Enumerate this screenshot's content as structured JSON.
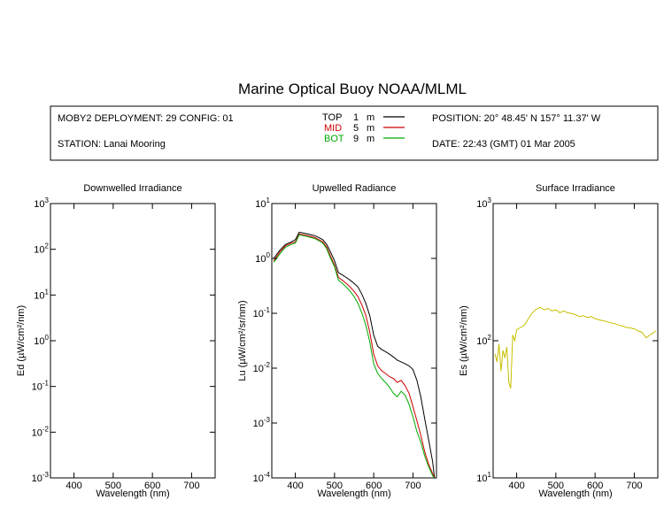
{
  "title": "Marine Optical Buoy NOAA/MLML",
  "header": {
    "deployment": "MOBY2 DEPLOYMENT: 29 CONFIG: 01",
    "station": "STATION: Lanai Mooring",
    "position": "POSITION: 20° 48.45' N   157° 11.37' W",
    "date": "DATE: 22:43 (GMT) 01 Mar 2005",
    "legend": [
      {
        "name": "TOP",
        "depth": "1",
        "unit": "m",
        "color": "#000000"
      },
      {
        "name": "MID",
        "depth": "5",
        "unit": "m",
        "color": "#cc0000"
      },
      {
        "name": "BOT",
        "depth": "9",
        "unit": "m",
        "color": "#00aa00"
      }
    ]
  },
  "chart_data": [
    {
      "type": "line",
      "title": "Downwelled Irradiance",
      "xlabel": "Wavelength (nm)",
      "ylabel": "Ed (µW/cm²/nm)",
      "xlim": [
        340,
        760
      ],
      "ylim": [
        0.001,
        1000
      ],
      "yscale": "log",
      "xticks": [
        400,
        500,
        600,
        700
      ],
      "yticks": [
        0.001,
        0.01,
        0.1,
        1,
        10,
        100,
        1000
      ],
      "ytick_labels": [
        [
          "10",
          "-3"
        ],
        [
          "10",
          "-2"
        ],
        [
          "10",
          "-1"
        ],
        [
          "10",
          "0"
        ],
        [
          "10",
          "1"
        ],
        [
          "10",
          "2"
        ],
        [
          "10",
          "3"
        ]
      ],
      "series": []
    },
    {
      "type": "line",
      "title": "Upwelled Radiance",
      "xlabel": "Wavelength (nm)",
      "ylabel": "Lu (µW/cm²/sr/nm)",
      "xlim": [
        340,
        760
      ],
      "ylim": [
        0.0001,
        10
      ],
      "yscale": "log",
      "xticks": [
        400,
        500,
        600,
        700
      ],
      "yticks": [
        0.0001,
        0.001,
        0.01,
        0.1,
        1,
        10
      ],
      "ytick_labels": [
        [
          "10",
          "-4"
        ],
        [
          "10",
          "-3"
        ],
        [
          "10",
          "-2"
        ],
        [
          "10",
          "-1"
        ],
        [
          "10",
          "0"
        ],
        [
          "10",
          "1"
        ]
      ],
      "series": [
        {
          "name": "TOP",
          "color": "#000000",
          "x": [
            345,
            360,
            375,
            390,
            400,
            410,
            420,
            430,
            440,
            450,
            460,
            470,
            480,
            490,
            500,
            510,
            520,
            530,
            540,
            550,
            560,
            570,
            580,
            590,
            600,
            610,
            620,
            630,
            640,
            650,
            660,
            670,
            680,
            690,
            700,
            710,
            720,
            730,
            740,
            750,
            755
          ],
          "y": [
            1.0,
            1.4,
            1.8,
            2.0,
            2.2,
            3.0,
            2.9,
            2.8,
            2.7,
            2.6,
            2.4,
            2.2,
            1.8,
            1.3,
            0.9,
            0.55,
            0.5,
            0.45,
            0.4,
            0.35,
            0.3,
            0.22,
            0.15,
            0.09,
            0.04,
            0.025,
            0.022,
            0.02,
            0.018,
            0.016,
            0.014,
            0.013,
            0.012,
            0.011,
            0.0095,
            0.006,
            0.003,
            0.0012,
            0.0005,
            0.0002,
            0.0001
          ]
        },
        {
          "name": "MID",
          "color": "#cc0000",
          "x": [
            345,
            360,
            375,
            390,
            400,
            410,
            420,
            430,
            440,
            450,
            460,
            470,
            480,
            490,
            500,
            510,
            520,
            530,
            540,
            550,
            560,
            570,
            580,
            590,
            600,
            610,
            620,
            630,
            640,
            650,
            660,
            670,
            680,
            690,
            700,
            710,
            720,
            730,
            740,
            750,
            755
          ],
          "y": [
            0.9,
            1.3,
            1.7,
            1.9,
            2.0,
            2.8,
            2.7,
            2.6,
            2.5,
            2.4,
            2.2,
            2.0,
            1.6,
            1.1,
            0.75,
            0.45,
            0.4,
            0.35,
            0.3,
            0.25,
            0.2,
            0.14,
            0.09,
            0.045,
            0.018,
            0.011,
            0.009,
            0.008,
            0.007,
            0.0065,
            0.0055,
            0.006,
            0.0048,
            0.0035,
            0.002,
            0.0011,
            0.0006,
            0.0003,
            0.00018,
            0.00012,
            0.0001
          ]
        },
        {
          "name": "BOT",
          "color": "#00aa00",
          "x": [
            345,
            360,
            375,
            390,
            400,
            410,
            420,
            430,
            440,
            450,
            460,
            470,
            480,
            490,
            500,
            510,
            520,
            530,
            540,
            550,
            560,
            570,
            580,
            590,
            600,
            610,
            620,
            630,
            640,
            650,
            660,
            670,
            680,
            690,
            700,
            710,
            720,
            730,
            740,
            750,
            755
          ],
          "y": [
            0.85,
            1.2,
            1.6,
            1.8,
            1.9,
            2.7,
            2.6,
            2.5,
            2.4,
            2.3,
            2.1,
            1.9,
            1.5,
            1.0,
            0.7,
            0.4,
            0.35,
            0.3,
            0.25,
            0.2,
            0.15,
            0.1,
            0.06,
            0.03,
            0.012,
            0.008,
            0.0065,
            0.0055,
            0.0045,
            0.0035,
            0.003,
            0.0038,
            0.0032,
            0.0022,
            0.0013,
            0.0007,
            0.00045,
            0.00025,
            0.00016,
            0.00011,
            0.0001
          ]
        }
      ]
    },
    {
      "type": "line",
      "title": "Surface Irradiance",
      "xlabel": "Wavelength (nm)",
      "ylabel": "Es (µW/cm²/nm)",
      "xlim": [
        340,
        760
      ],
      "ylim": [
        10,
        1000
      ],
      "yscale": "log",
      "xticks": [
        400,
        500,
        600,
        700
      ],
      "yticks": [
        10,
        100,
        1000
      ],
      "ytick_labels": [
        [
          "10",
          "1"
        ],
        [
          "10",
          "2"
        ],
        [
          "10",
          "3"
        ]
      ],
      "series": [
        {
          "name": "Es",
          "color": "#c8c000",
          "x": [
            345,
            350,
            355,
            360,
            365,
            370,
            375,
            380,
            385,
            390,
            395,
            400,
            410,
            420,
            430,
            440,
            450,
            460,
            470,
            480,
            490,
            500,
            510,
            520,
            530,
            540,
            550,
            560,
            570,
            580,
            590,
            600,
            610,
            620,
            630,
            640,
            650,
            660,
            670,
            680,
            690,
            700,
            710,
            720,
            730,
            740,
            750,
            755
          ],
          "y": [
            80,
            70,
            95,
            60,
            85,
            75,
            90,
            50,
            45,
            110,
            100,
            120,
            125,
            130,
            145,
            160,
            170,
            175,
            168,
            172,
            165,
            168,
            160,
            165,
            160,
            158,
            155,
            150,
            152,
            148,
            150,
            145,
            142,
            140,
            138,
            135,
            133,
            130,
            128,
            125,
            124,
            122,
            118,
            115,
            105,
            110,
            115,
            118
          ]
        }
      ]
    }
  ]
}
